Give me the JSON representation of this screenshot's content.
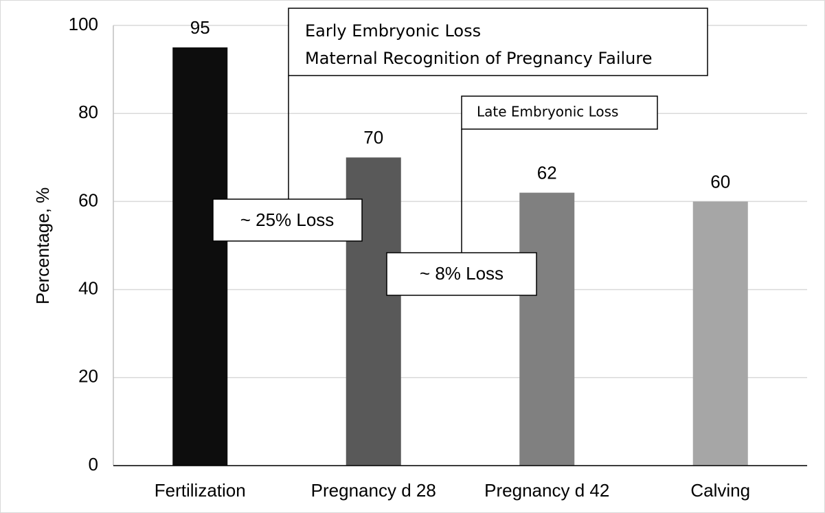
{
  "chart_data": {
    "type": "bar",
    "y_label": "Percentage, %",
    "categories": [
      "Fertilization",
      "Pregnancy d 28",
      "Pregnancy d 42",
      "Calving"
    ],
    "values": [
      95,
      70,
      62,
      60
    ],
    "colors": [
      "#0d0d0d",
      "#595959",
      "#808080",
      "#a6a6a6"
    ],
    "ylim": [
      0,
      100
    ],
    "yticks": [
      0,
      20,
      40,
      60,
      80,
      100
    ],
    "grid": true,
    "annotations": [
      "Early Embryonic Loss",
      "Maternal Recognition of Pregnancy Failure",
      "Late Embryonic Loss",
      "~ 25% Loss",
      "~ 8% Loss"
    ]
  }
}
